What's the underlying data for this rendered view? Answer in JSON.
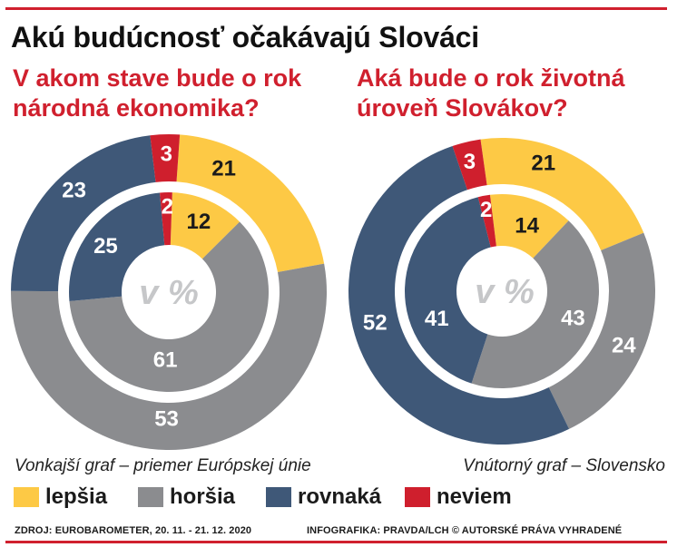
{
  "title": "Akú budúcnosť očakávajú Slováci",
  "accent_color": "#D0202E",
  "palette": [
    "#FDC945",
    "#8B8C8F",
    "#3F5878",
    "#CF1F2D"
  ],
  "captions": {
    "outer": "Vonkajší graf – priemer Európskej únie",
    "inner": "Vnútorný graf – Slovensko"
  },
  "footer": {
    "source": "ZDROJ: EUROBAROMETER, 20. 11. - 21. 12. 2020",
    "credit": "INFOGRAFIKA: PRAVDA/LCH © AUTORSKÉ PRÁVA VYHRADENÉ"
  },
  "chart_data": [
    {
      "type": "pie",
      "title": "V akom stave bude o rok národná ekonomika?",
      "unit": "v %",
      "categories": [
        "lepšia",
        "horšia",
        "rovnaká",
        "neviem"
      ],
      "series": [
        {
          "values": [
            21,
            53,
            23,
            3
          ]
        },
        {
          "values": [
            12,
            61,
            25,
            2
          ]
        }
      ]
    },
    {
      "type": "pie",
      "title": "Aká bude o rok životná úroveň Slovákov?",
      "unit": "v %",
      "categories": [
        "lepšia",
        "horšia",
        "rovnaká",
        "neviem"
      ],
      "series": [
        {
          "values": [
            21,
            24,
            52,
            3
          ]
        },
        {
          "values": [
            14,
            43,
            41,
            2
          ]
        }
      ]
    }
  ]
}
